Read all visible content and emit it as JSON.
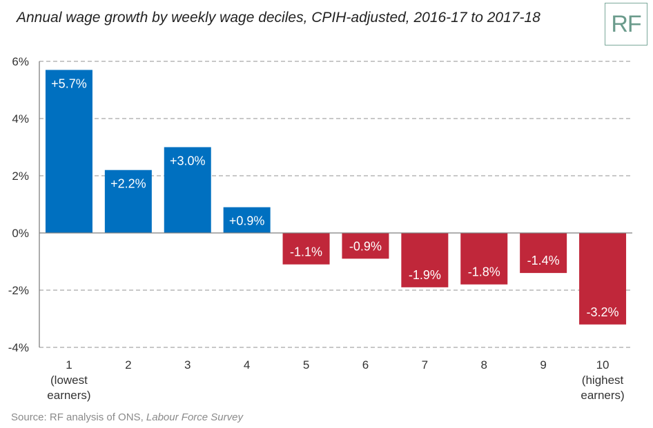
{
  "title": "Annual wage growth by weekly wage deciles, CPIH-adjusted, 2016-17 to 2017-18",
  "logo_text": "RF",
  "source": {
    "prefix": "Source: RF analysis of ONS, ",
    "italic": "Labour Force Survey"
  },
  "colors": {
    "positive": "#0070c0",
    "negative": "#c0273a",
    "grid": "#a6a6a6",
    "axis": "#7f7f7f",
    "logo": "#6b9b8c"
  },
  "chart_data": {
    "type": "bar",
    "categories": [
      [
        "1",
        "(lowest",
        "earners)"
      ],
      [
        "2"
      ],
      [
        "3"
      ],
      [
        "4"
      ],
      [
        "5"
      ],
      [
        "6"
      ],
      [
        "7"
      ],
      [
        "8"
      ],
      [
        "9"
      ],
      [
        "10",
        "(highest",
        "earners)"
      ]
    ],
    "values": [
      5.7,
      2.2,
      3.0,
      0.9,
      -1.1,
      -0.9,
      -1.9,
      -1.8,
      -1.4,
      -3.2
    ],
    "data_labels": [
      "+5.7%",
      "+2.2%",
      "+3.0%",
      "+0.9%",
      "-1.1%",
      "-0.9%",
      "-1.9%",
      "-1.8%",
      "-1.4%",
      "-3.2%"
    ],
    "ylim": [
      -4,
      6
    ],
    "yticks": [
      6,
      4,
      2,
      0,
      -2,
      -4
    ],
    "ytick_labels": [
      "6%",
      "4%",
      "2%",
      "0%",
      "-2%",
      "-4%"
    ],
    "grid": true,
    "legend": "none"
  }
}
